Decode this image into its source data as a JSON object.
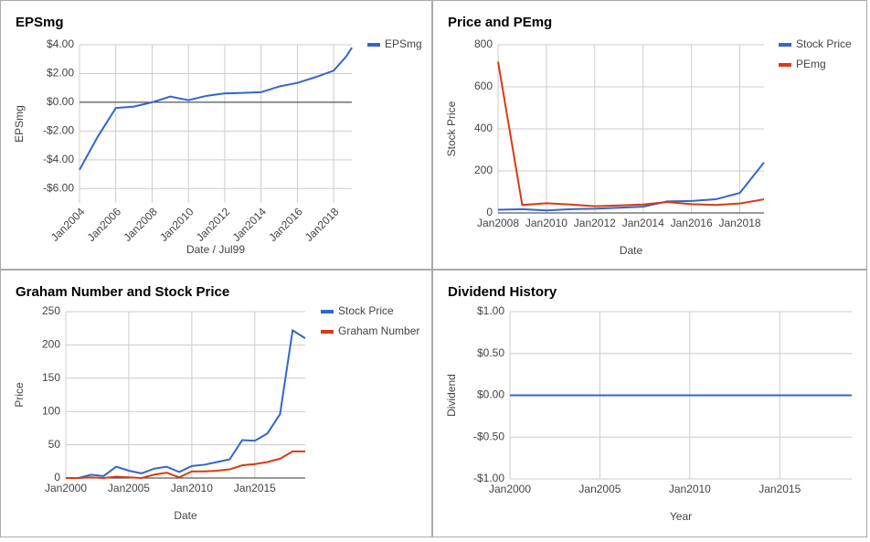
{
  "chart_data": [
    {
      "type": "line",
      "title": "EPSmg",
      "xlabel": "Date / Jul99",
      "ylabel": "EPSmg",
      "x": [
        2004,
        2005,
        2006,
        2007,
        2008,
        2009,
        2010,
        2011,
        2012,
        2013,
        2014,
        2015,
        2016,
        2017,
        2018,
        2018.7,
        2019
      ],
      "series": [
        {
          "name": "EPSmg",
          "color": "#3366cc",
          "values": [
            -4.7,
            -2.4,
            -0.4,
            -0.3,
            0.0,
            0.4,
            0.15,
            0.45,
            0.62,
            0.65,
            0.7,
            1.1,
            1.35,
            1.75,
            2.2,
            3.2,
            3.8
          ]
        }
      ],
      "xlim": [
        2004,
        2019
      ],
      "ylim": [
        -7,
        4
      ],
      "xticks": [
        {
          "value": 2004,
          "label": "Jan2004"
        },
        {
          "value": 2006,
          "label": "Jan2006"
        },
        {
          "value": 2008,
          "label": "Jan2008"
        },
        {
          "value": 2010,
          "label": "Jan2010"
        },
        {
          "value": 2012,
          "label": "Jan2012"
        },
        {
          "value": 2014,
          "label": "Jan2014"
        },
        {
          "value": 2016,
          "label": "Jan2016"
        },
        {
          "value": 2018,
          "label": "Jan2018"
        }
      ],
      "yticks": [
        {
          "value": 4,
          "label": "$4.00"
        },
        {
          "value": 2,
          "label": "$2.00"
        },
        {
          "value": 0,
          "label": "$0.00"
        },
        {
          "value": -2,
          "label": "-$2.00"
        },
        {
          "value": -4,
          "label": "-$4.00"
        },
        {
          "value": -6,
          "label": "-$6.00"
        }
      ],
      "grid": true,
      "legend": "right"
    },
    {
      "type": "line",
      "title": "Price and PEmg",
      "xlabel": "Date",
      "ylabel": "Stock Price",
      "x": [
        2008,
        2009,
        2010,
        2011,
        2012,
        2013,
        2014,
        2015,
        2016,
        2017,
        2018,
        2019
      ],
      "series": [
        {
          "name": "Stock Price",
          "color": "#3366cc",
          "values": [
            15,
            18,
            12,
            18,
            20,
            25,
            30,
            55,
            57,
            65,
            95,
            240
          ]
        },
        {
          "name": "PEmg",
          "color": "#dc3912",
          "values": [
            720,
            38,
            46,
            40,
            32,
            36,
            40,
            52,
            42,
            38,
            45,
            65
          ]
        }
      ],
      "xlim": [
        2008,
        2019
      ],
      "ylim": [
        0,
        800
      ],
      "xticks": [
        {
          "value": 2008,
          "label": "Jan2008"
        },
        {
          "value": 2010,
          "label": "Jan2010"
        },
        {
          "value": 2012,
          "label": "Jan2012"
        },
        {
          "value": 2014,
          "label": "Jan2014"
        },
        {
          "value": 2016,
          "label": "Jan2016"
        },
        {
          "value": 2018,
          "label": "Jan2018"
        }
      ],
      "yticks": [
        0,
        200,
        400,
        600,
        800
      ],
      "grid": true,
      "legend": "right"
    },
    {
      "type": "line",
      "title": "Graham Number and Stock Price",
      "xlabel": "Date",
      "ylabel": "Price",
      "x": [
        2000,
        2001,
        2002,
        2003,
        2004,
        2005,
        2006,
        2007,
        2008,
        2009,
        2010,
        2011,
        2012,
        2013,
        2014,
        2015,
        2016,
        2017,
        2018,
        2019
      ],
      "series": [
        {
          "name": "Stock Price",
          "color": "#3366cc",
          "values": [
            0,
            0,
            5,
            3,
            17,
            11,
            7,
            14,
            17,
            9,
            18,
            20,
            24,
            28,
            57,
            56,
            67,
            96,
            222,
            210
          ]
        },
        {
          "name": "Graham Number",
          "color": "#dc3912",
          "values": [
            0,
            0,
            1,
            0,
            2,
            1,
            0,
            5,
            8,
            1,
            10,
            10,
            11,
            13,
            19,
            21,
            24,
            29,
            40,
            40
          ]
        }
      ],
      "xlim": [
        2000,
        2019
      ],
      "ylim": [
        0,
        250
      ],
      "xticks": [
        {
          "value": 2000,
          "label": "Jan2000"
        },
        {
          "value": 2005,
          "label": "Jan2005"
        },
        {
          "value": 2010,
          "label": "Jan2010"
        },
        {
          "value": 2015,
          "label": "Jan2015"
        }
      ],
      "yticks": [
        0,
        50,
        100,
        150,
        200,
        250
      ],
      "grid": true,
      "legend": "right"
    },
    {
      "type": "line",
      "title": "Dividend History",
      "xlabel": "Year",
      "ylabel": "Dividend",
      "x": [
        2000,
        2001,
        2002,
        2003,
        2004,
        2005,
        2006,
        2007,
        2008,
        2009,
        2010,
        2011,
        2012,
        2013,
        2014,
        2015,
        2016,
        2017,
        2018,
        2019
      ],
      "series": [
        {
          "color": "#3366cc",
          "values": [
            0,
            0,
            0,
            0,
            0,
            0,
            0,
            0,
            0,
            0,
            0,
            0,
            0,
            0,
            0,
            0,
            0,
            0,
            0,
            0
          ]
        }
      ],
      "xlim": [
        2000,
        2019
      ],
      "ylim": [
        -1,
        1
      ],
      "xticks": [
        {
          "value": 2000,
          "label": "Jan2000"
        },
        {
          "value": 2005,
          "label": "Jan2005"
        },
        {
          "value": 2010,
          "label": "Jan2010"
        },
        {
          "value": 2015,
          "label": "Jan2015"
        }
      ],
      "yticks": [
        {
          "value": 1,
          "label": "$1.00"
        },
        {
          "value": 0.5,
          "label": "$0.50"
        },
        {
          "value": 0,
          "label": "$0.00"
        },
        {
          "value": -0.5,
          "label": "-$0.50"
        },
        {
          "value": -1,
          "label": "-$1.00"
        }
      ],
      "grid": true
    }
  ]
}
